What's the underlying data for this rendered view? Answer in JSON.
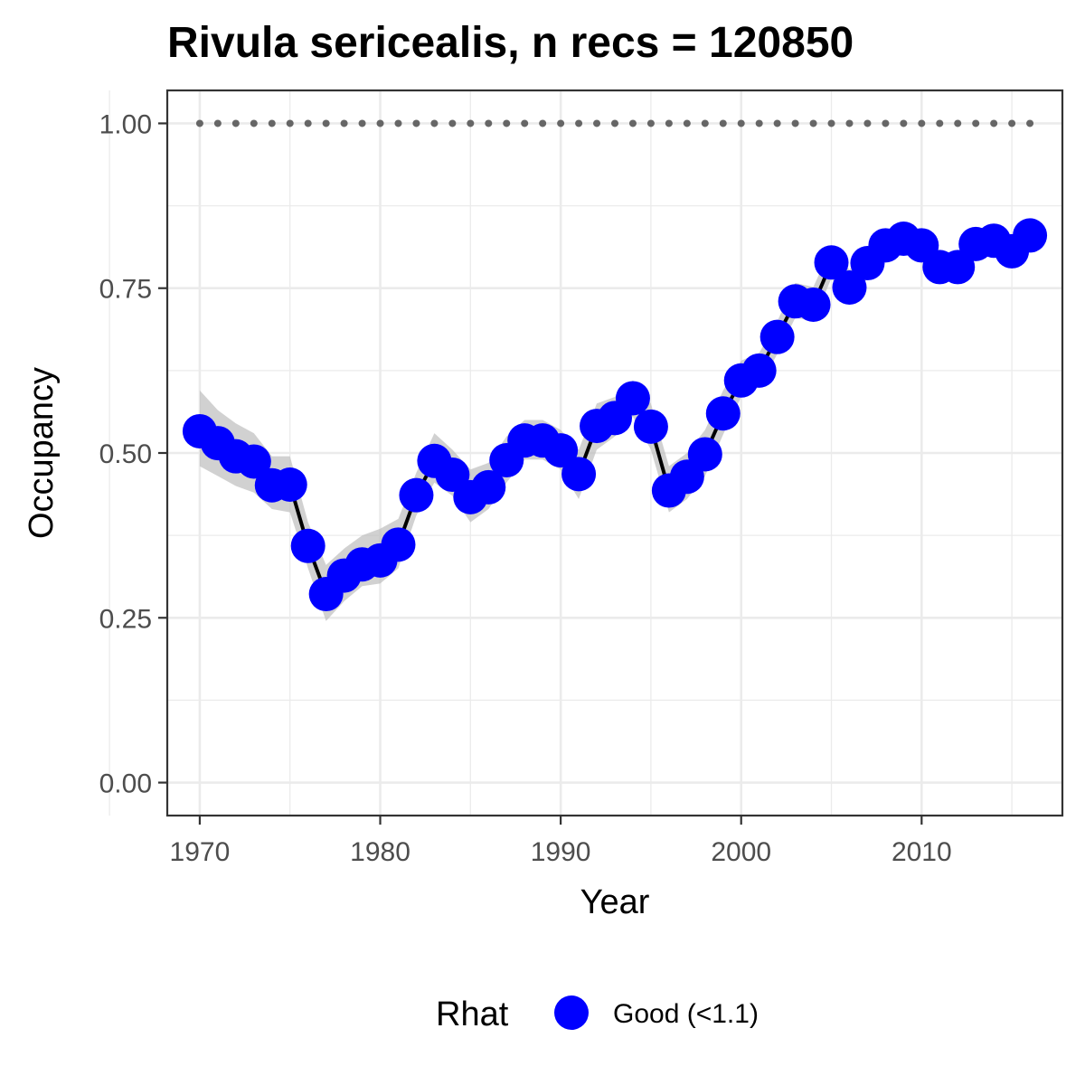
{
  "chart_data": {
    "type": "line",
    "title": "Rivula sericealis, n recs = 120850",
    "xlabel": "Year",
    "ylabel": "Occupancy",
    "xlim": [
      1968.2,
      2017.8
    ],
    "ylim": [
      -0.05,
      1.05
    ],
    "x_ticks": [
      1970,
      1980,
      1990,
      2000,
      2010
    ],
    "x_tick_labels": [
      "1970",
      "1980",
      "1990",
      "2000",
      "2010"
    ],
    "y_ticks": [
      0,
      0.25,
      0.5,
      0.75,
      1.0
    ],
    "y_tick_labels": [
      "0.00",
      "0.25",
      "0.50",
      "0.75",
      "1.00"
    ],
    "grid": true,
    "legend": {
      "title": "Rhat",
      "placement": "bottom",
      "entries": [
        "Good (<1.1)"
      ]
    },
    "colors": {
      "points": "#0000ff",
      "line": "#000000",
      "ribbon": "#bebebe",
      "reference": "#666666",
      "panel_border": "#333333",
      "grid": "#ebebeb"
    },
    "series": [
      {
        "name": "Good (<1.1)",
        "x": [
          1970,
          1971,
          1972,
          1973,
          1974,
          1975,
          1976,
          1977,
          1978,
          1979,
          1980,
          1981,
          1982,
          1983,
          1984,
          1985,
          1986,
          1987,
          1988,
          1989,
          1990,
          1991,
          1992,
          1993,
          1994,
          1995,
          1996,
          1997,
          1998,
          1999,
          2000,
          2001,
          2002,
          2003,
          2004,
          2005,
          2006,
          2007,
          2008,
          2009,
          2010,
          2011,
          2012,
          2013,
          2014,
          2015,
          2016
        ],
        "y": [
          0.533,
          0.515,
          0.495,
          0.487,
          0.451,
          0.452,
          0.359,
          0.286,
          0.314,
          0.331,
          0.337,
          0.361,
          0.436,
          0.488,
          0.467,
          0.433,
          0.448,
          0.489,
          0.519,
          0.519,
          0.504,
          0.468,
          0.541,
          0.553,
          0.583,
          0.54,
          0.443,
          0.464,
          0.498,
          0.56,
          0.61,
          0.625,
          0.676,
          0.73,
          0.725,
          0.789,
          0.751,
          0.788,
          0.815,
          0.825,
          0.815,
          0.782,
          0.782,
          0.817,
          0.822,
          0.806,
          0.83
        ],
        "lower": [
          0.48,
          0.465,
          0.45,
          0.44,
          0.415,
          0.41,
          0.325,
          0.245,
          0.275,
          0.298,
          0.302,
          0.325,
          0.405,
          0.455,
          0.435,
          0.395,
          0.415,
          0.455,
          0.49,
          0.49,
          0.475,
          0.43,
          0.505,
          0.525,
          0.555,
          0.505,
          0.41,
          0.43,
          0.465,
          0.528,
          0.585,
          0.6,
          0.65,
          0.705,
          0.7,
          0.765,
          0.725,
          0.765,
          0.795,
          0.805,
          0.795,
          0.76,
          0.76,
          0.795,
          0.8,
          0.78,
          0.81
        ],
        "upper": [
          0.595,
          0.565,
          0.545,
          0.53,
          0.495,
          0.495,
          0.395,
          0.33,
          0.355,
          0.375,
          0.385,
          0.4,
          0.47,
          0.53,
          0.505,
          0.475,
          0.485,
          0.525,
          0.55,
          0.55,
          0.535,
          0.505,
          0.575,
          0.585,
          0.61,
          0.575,
          0.48,
          0.5,
          0.535,
          0.595,
          0.64,
          0.652,
          0.7,
          0.758,
          0.752,
          0.812,
          0.778,
          0.812,
          0.838,
          0.845,
          0.838,
          0.805,
          0.805,
          0.84,
          0.845,
          0.83,
          0.85
        ]
      }
    ],
    "reference_line": {
      "y": 1.0,
      "style": "dotted"
    }
  }
}
